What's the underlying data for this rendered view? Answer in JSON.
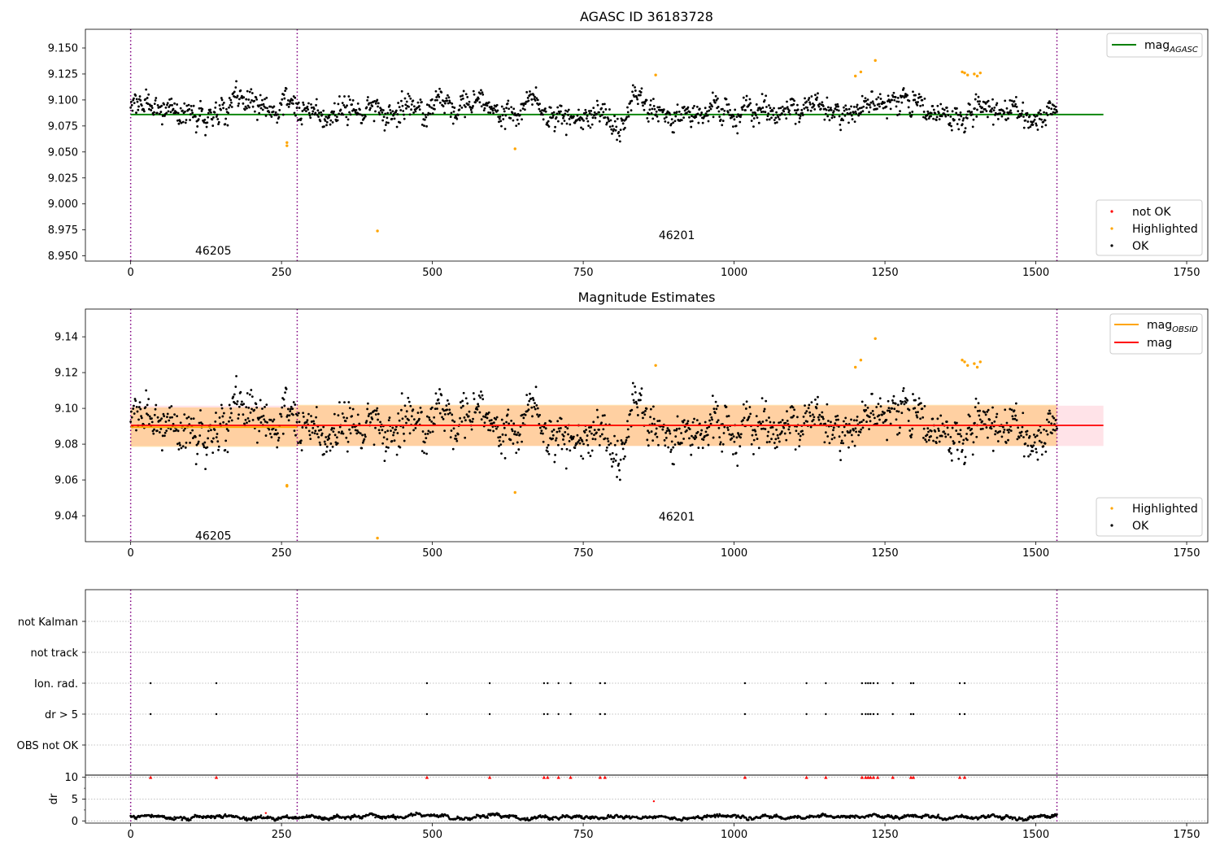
{
  "chart_data": [
    {
      "type": "scatter",
      "title": "AGASC ID 36183728",
      "xlim": [
        -75,
        1785
      ],
      "ylim": [
        8.945,
        9.168
      ],
      "xticks": [
        0,
        250,
        500,
        750,
        1000,
        1250,
        1500,
        1750
      ],
      "yticks": [
        8.95,
        8.975,
        9.0,
        9.025,
        9.05,
        9.075,
        9.1,
        9.125,
        9.15
      ],
      "ytick_labels": [
        "8.950",
        "8.975",
        "9.000",
        "9.025",
        "9.050",
        "9.075",
        "9.100",
        "9.125",
        "9.150"
      ],
      "obsid_boundaries": [
        0,
        276,
        1535
      ],
      "obsid_labels": [
        {
          "text": "46205",
          "x": 137,
          "y": 8.955
        },
        {
          "text": "46201",
          "x": 905,
          "y": 8.97
        }
      ],
      "lines": [
        {
          "name": "mag_AGASC",
          "color": "#008000",
          "x": [
            0,
            1612
          ],
          "y": [
            9.086,
            9.086
          ]
        }
      ],
      "legend_lines": [
        {
          "label": "mag",
          "sub": "AGASC",
          "color": "#008000"
        }
      ],
      "legend_points": [
        {
          "label": "not OK",
          "color": "#ff0000"
        },
        {
          "label": "Highlighted",
          "color": "#ffa500"
        },
        {
          "label": "OK",
          "color": "#000000"
        }
      ],
      "highlighted": [
        [
          259,
          9.059
        ],
        [
          259,
          9.056
        ],
        [
          637,
          9.053
        ],
        [
          409,
          8.974
        ],
        [
          870,
          9.124
        ],
        [
          1201,
          9.123
        ],
        [
          1210,
          9.127
        ],
        [
          1234,
          9.138
        ],
        [
          1378,
          9.127
        ],
        [
          1382,
          9.126
        ],
        [
          1387,
          9.124
        ],
        [
          1398,
          9.125
        ],
        [
          1403,
          9.123
        ],
        [
          1408,
          9.126
        ]
      ],
      "ok_series": {
        "x_range": [
          0,
          1535
        ],
        "count": 1500,
        "mean": 9.092,
        "std": 0.009,
        "y_range": [
          9.06,
          9.118
        ]
      }
    },
    {
      "type": "scatter",
      "title": "Magnitude Estimates",
      "xlim": [
        -75,
        1785
      ],
      "ylim": [
        9.0255,
        9.1555
      ],
      "xticks": [
        0,
        250,
        500,
        750,
        1000,
        1250,
        1500,
        1750
      ],
      "yticks": [
        9.04,
        9.06,
        9.08,
        9.1,
        9.12,
        9.14
      ],
      "ytick_labels": [
        "9.04",
        "9.06",
        "9.08",
        "9.10",
        "9.12",
        "9.14"
      ],
      "obsid_boundaries": [
        0,
        276,
        1535
      ],
      "obsid_labels": [
        {
          "text": "46205",
          "x": 137,
          "y": 9.029
        },
        {
          "text": "46201",
          "x": 905,
          "y": 9.0395
        }
      ],
      "bands": [
        {
          "name": "mag range",
          "color": "#ffc0cb",
          "alpha": 0.45,
          "x": [
            0,
            1612
          ],
          "y": [
            9.079,
            9.1015
          ]
        },
        {
          "name": "mag_OBSID 46205 range",
          "color": "#ffa500",
          "alpha": 0.3,
          "x": [
            0,
            276
          ],
          "y": [
            9.0785,
            9.1005
          ]
        },
        {
          "name": "mag_OBSID 46201 range",
          "color": "#ffa500",
          "alpha": 0.3,
          "x": [
            276,
            1535
          ],
          "y": [
            9.079,
            9.102
          ]
        }
      ],
      "lines": [
        {
          "name": "mag_OBSID 46205",
          "color": "#ffa500",
          "x": [
            0,
            276
          ],
          "y": [
            9.0895,
            9.0895
          ]
        },
        {
          "name": "mag_OBSID 46201",
          "color": "#ffa500",
          "x": [
            276,
            1535
          ],
          "y": [
            9.0905,
            9.0905
          ]
        },
        {
          "name": "mag",
          "color": "#ff0000",
          "x": [
            0,
            1612
          ],
          "y": [
            9.0905,
            9.0905
          ]
        }
      ],
      "legend_lines": [
        {
          "label": "mag",
          "sub": "OBSID",
          "color": "#ffa500"
        },
        {
          "label": "mag",
          "sub": "",
          "color": "#ff0000"
        }
      ],
      "legend_points": [
        {
          "label": "Highlighted",
          "color": "#ffa500"
        },
        {
          "label": "OK",
          "color": "#000000"
        }
      ],
      "highlighted": [
        [
          259,
          9.057
        ],
        [
          259,
          9.0565
        ],
        [
          637,
          9.053
        ],
        [
          409,
          9.0275
        ],
        [
          870,
          9.124
        ],
        [
          1201,
          9.123
        ],
        [
          1210,
          9.127
        ],
        [
          1234,
          9.139
        ],
        [
          1378,
          9.127
        ],
        [
          1382,
          9.126
        ],
        [
          1387,
          9.124
        ],
        [
          1398,
          9.125
        ],
        [
          1403,
          9.123
        ],
        [
          1408,
          9.126
        ]
      ],
      "ok_series": {
        "x_range": [
          0,
          1535
        ],
        "count": 1500,
        "mean": 9.092,
        "std": 0.009,
        "y_range": [
          9.06,
          9.118
        ]
      }
    },
    {
      "type": "scatter",
      "title": "",
      "xlim": [
        -75,
        1785
      ],
      "xticks": [
        0,
        250,
        500,
        750,
        1000,
        1250,
        1500,
        1750
      ],
      "obsid_boundaries": [
        0,
        276,
        1535
      ],
      "flag_categories": [
        "not Kalman",
        "not track",
        "Ion. rad.",
        "dr > 5",
        "OBS not OK"
      ],
      "flag_events": {
        "not Kalman": [],
        "not track": [],
        "Ion. rad.": [
          33,
          142,
          491,
          595,
          685,
          691,
          709,
          729,
          778,
          786,
          1018,
          1120,
          1152,
          1212,
          1218,
          1222,
          1226,
          1231,
          1238,
          1263,
          1293,
          1297,
          1374,
          1382
        ],
        "dr > 5": [
          33,
          142,
          491,
          595,
          685,
          691,
          709,
          729,
          778,
          786,
          1018,
          1120,
          1152,
          1212,
          1218,
          1222,
          1226,
          1231,
          1238,
          1263,
          1293,
          1297,
          1374,
          1382
        ],
        "OBS not OK": []
      },
      "dr_panel": {
        "ylabel": "dr",
        "ylim": [
          -0.5,
          10.5
        ],
        "yticks": [
          0,
          5,
          10
        ],
        "ytick_labels": [
          "0",
          "5",
          "10"
        ],
        "gridlines": [
          0,
          5,
          10
        ],
        "clipped_markers": {
          "y": 10,
          "x": [
            33,
            142,
            491,
            595,
            685,
            691,
            709,
            729,
            778,
            786,
            1018,
            1120,
            1152,
            1212,
            1218,
            1222,
            1226,
            1231,
            1238,
            1263,
            1293,
            1297,
            1374,
            1382
          ]
        },
        "outliers": [
          [
            867,
            4.5
          ],
          [
            224,
            1.8
          ]
        ],
        "ok_series": {
          "x_range": [
            0,
            1535
          ],
          "count": 1500,
          "mean": 0.9,
          "amplitude": 0.6
        }
      }
    }
  ],
  "colors": {
    "ok": "#000000",
    "highlighted": "#ffa500",
    "not_ok": "#ff0000",
    "obsid_line": "#800080",
    "agasc_line": "#008000",
    "mag_line": "#ff0000",
    "obsid_mag_line": "#ffa500"
  }
}
